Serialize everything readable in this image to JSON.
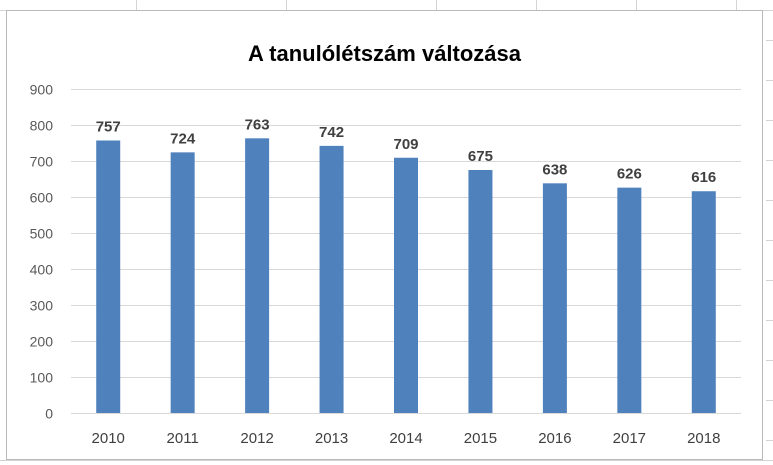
{
  "chart_data": {
    "type": "bar",
    "title": "A tanulólétszám változása",
    "categories": [
      "2010",
      "2011",
      "2012",
      "2013",
      "2014",
      "2015",
      "2016",
      "2017",
      "2018"
    ],
    "values": [
      757,
      724,
      763,
      742,
      709,
      675,
      638,
      626,
      616
    ],
    "ylim": [
      0,
      900
    ],
    "yticks": [
      0,
      100,
      200,
      300,
      400,
      500,
      600,
      700,
      800,
      900
    ],
    "xlabel": "",
    "ylabel": "",
    "grid": true,
    "data_labels": true,
    "legend": "none",
    "bar_color": "#4F81BD"
  }
}
